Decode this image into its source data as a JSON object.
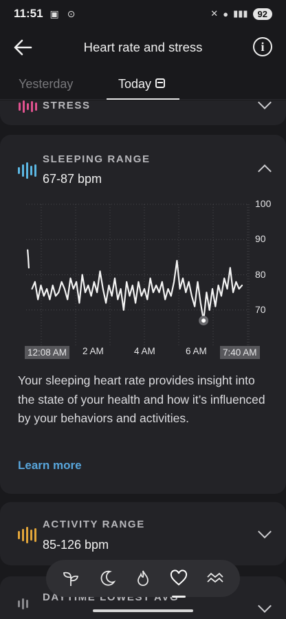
{
  "status_bar": {
    "time": "11:51",
    "battery": "92"
  },
  "header": {
    "title": "Heart rate and stress",
    "back_icon": "back-arrow-icon",
    "info_icon": "info-icon"
  },
  "tabs": [
    {
      "label": "Yesterday",
      "active": false
    },
    {
      "label": "Today",
      "active": true
    }
  ],
  "cards": {
    "stress": {
      "label": "STRESS",
      "color": "#e0528f"
    },
    "sleeping": {
      "label": "SLEEPING RANGE",
      "range": "67-87 bpm",
      "color": "#5cb8e4",
      "description": "Your sleeping heart rate provides insight into the state of your health and how it’s influenced by your behaviors and activities.",
      "learn_more": "Learn more"
    },
    "activity": {
      "label": "ACTIVITY RANGE",
      "range": "85-126 bpm",
      "color": "#e3a63a"
    },
    "daytime": {
      "label": "DAYTIME LOWEST AVG"
    }
  },
  "chart_data": {
    "type": "line",
    "x_start": "12:08 AM",
    "x_end": "7:40 AM",
    "x_ticks": [
      "12:08 AM",
      "2 AM",
      "4 AM",
      "6 AM",
      "7:40 AM"
    ],
    "y_ticks": [
      100,
      90,
      80,
      70
    ],
    "ylim": [
      60,
      100
    ],
    "min_marker": 67,
    "series": [
      {
        "x": [
          0.05,
          0.07,
          0.09
        ],
        "y": [
          87,
          85,
          82
        ]
      },
      {
        "x": [
          0.2,
          0.3,
          0.4,
          0.5,
          0.6,
          0.7,
          0.8,
          0.9,
          1.0,
          1.1,
          1.2,
          1.3,
          1.4,
          1.5,
          1.6,
          1.7,
          1.8,
          1.9,
          2.0,
          2.1,
          2.2,
          2.3,
          2.4,
          2.5,
          2.6,
          2.7,
          2.8,
          2.9,
          3.0,
          3.1,
          3.2,
          3.3,
          3.4,
          3.5,
          3.6,
          3.7,
          3.8,
          3.9,
          4.0,
          4.1,
          4.2,
          4.3,
          4.4,
          4.5,
          4.6,
          4.7,
          4.8,
          4.9,
          5.0,
          5.1,
          5.2,
          5.3,
          5.4,
          5.5,
          5.6,
          5.7,
          5.8,
          5.9,
          6.0,
          6.1,
          6.2,
          6.3,
          6.4,
          6.5,
          6.6,
          6.7,
          6.8,
          6.9,
          7.0,
          7.1,
          7.2,
          7.3
        ],
        "y": [
          76,
          78,
          73,
          77,
          74,
          76,
          73,
          77,
          74,
          75,
          78,
          76,
          73,
          79,
          76,
          78,
          72,
          80,
          75,
          77,
          74,
          78,
          75,
          81,
          76,
          72,
          77,
          74,
          79,
          73,
          76,
          70,
          78,
          74,
          77,
          72,
          78,
          74,
          76,
          73,
          79,
          75,
          77,
          75,
          78,
          73,
          76,
          74,
          78,
          84,
          76,
          79,
          75,
          78,
          74,
          71,
          78,
          72,
          67,
          75,
          70,
          76,
          71,
          77,
          74,
          79,
          76,
          82,
          75,
          78,
          76,
          77
        ]
      }
    ]
  }
}
